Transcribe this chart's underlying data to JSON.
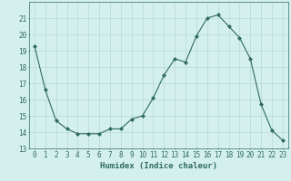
{
  "x": [
    0,
    1,
    2,
    3,
    4,
    5,
    6,
    7,
    8,
    9,
    10,
    11,
    12,
    13,
    14,
    15,
    16,
    17,
    18,
    19,
    20,
    21,
    22,
    23
  ],
  "y": [
    19.3,
    16.6,
    14.7,
    14.2,
    13.9,
    13.9,
    13.9,
    14.2,
    14.2,
    14.8,
    15.0,
    16.1,
    17.5,
    18.5,
    18.3,
    19.9,
    21.0,
    21.2,
    20.5,
    19.8,
    18.5,
    15.7,
    14.1,
    13.5
  ],
  "line_color": "#2e6b5e",
  "marker": "D",
  "marker_size": 2.0,
  "bg_color": "#d4f0ec",
  "grid_color": "#b8d8d4",
  "xlabel": "Humidex (Indice chaleur)",
  "ylim": [
    13,
    22
  ],
  "xlim": [
    -0.5,
    23.5
  ],
  "yticks": [
    13,
    14,
    15,
    16,
    17,
    18,
    19,
    20,
    21
  ],
  "xticks": [
    0,
    1,
    2,
    3,
    4,
    5,
    6,
    7,
    8,
    9,
    10,
    11,
    12,
    13,
    14,
    15,
    16,
    17,
    18,
    19,
    20,
    21,
    22,
    23
  ],
  "font_color": "#2e6b5e",
  "label_fontsize": 6.5,
  "tick_fontsize": 5.5,
  "linewidth": 0.8
}
